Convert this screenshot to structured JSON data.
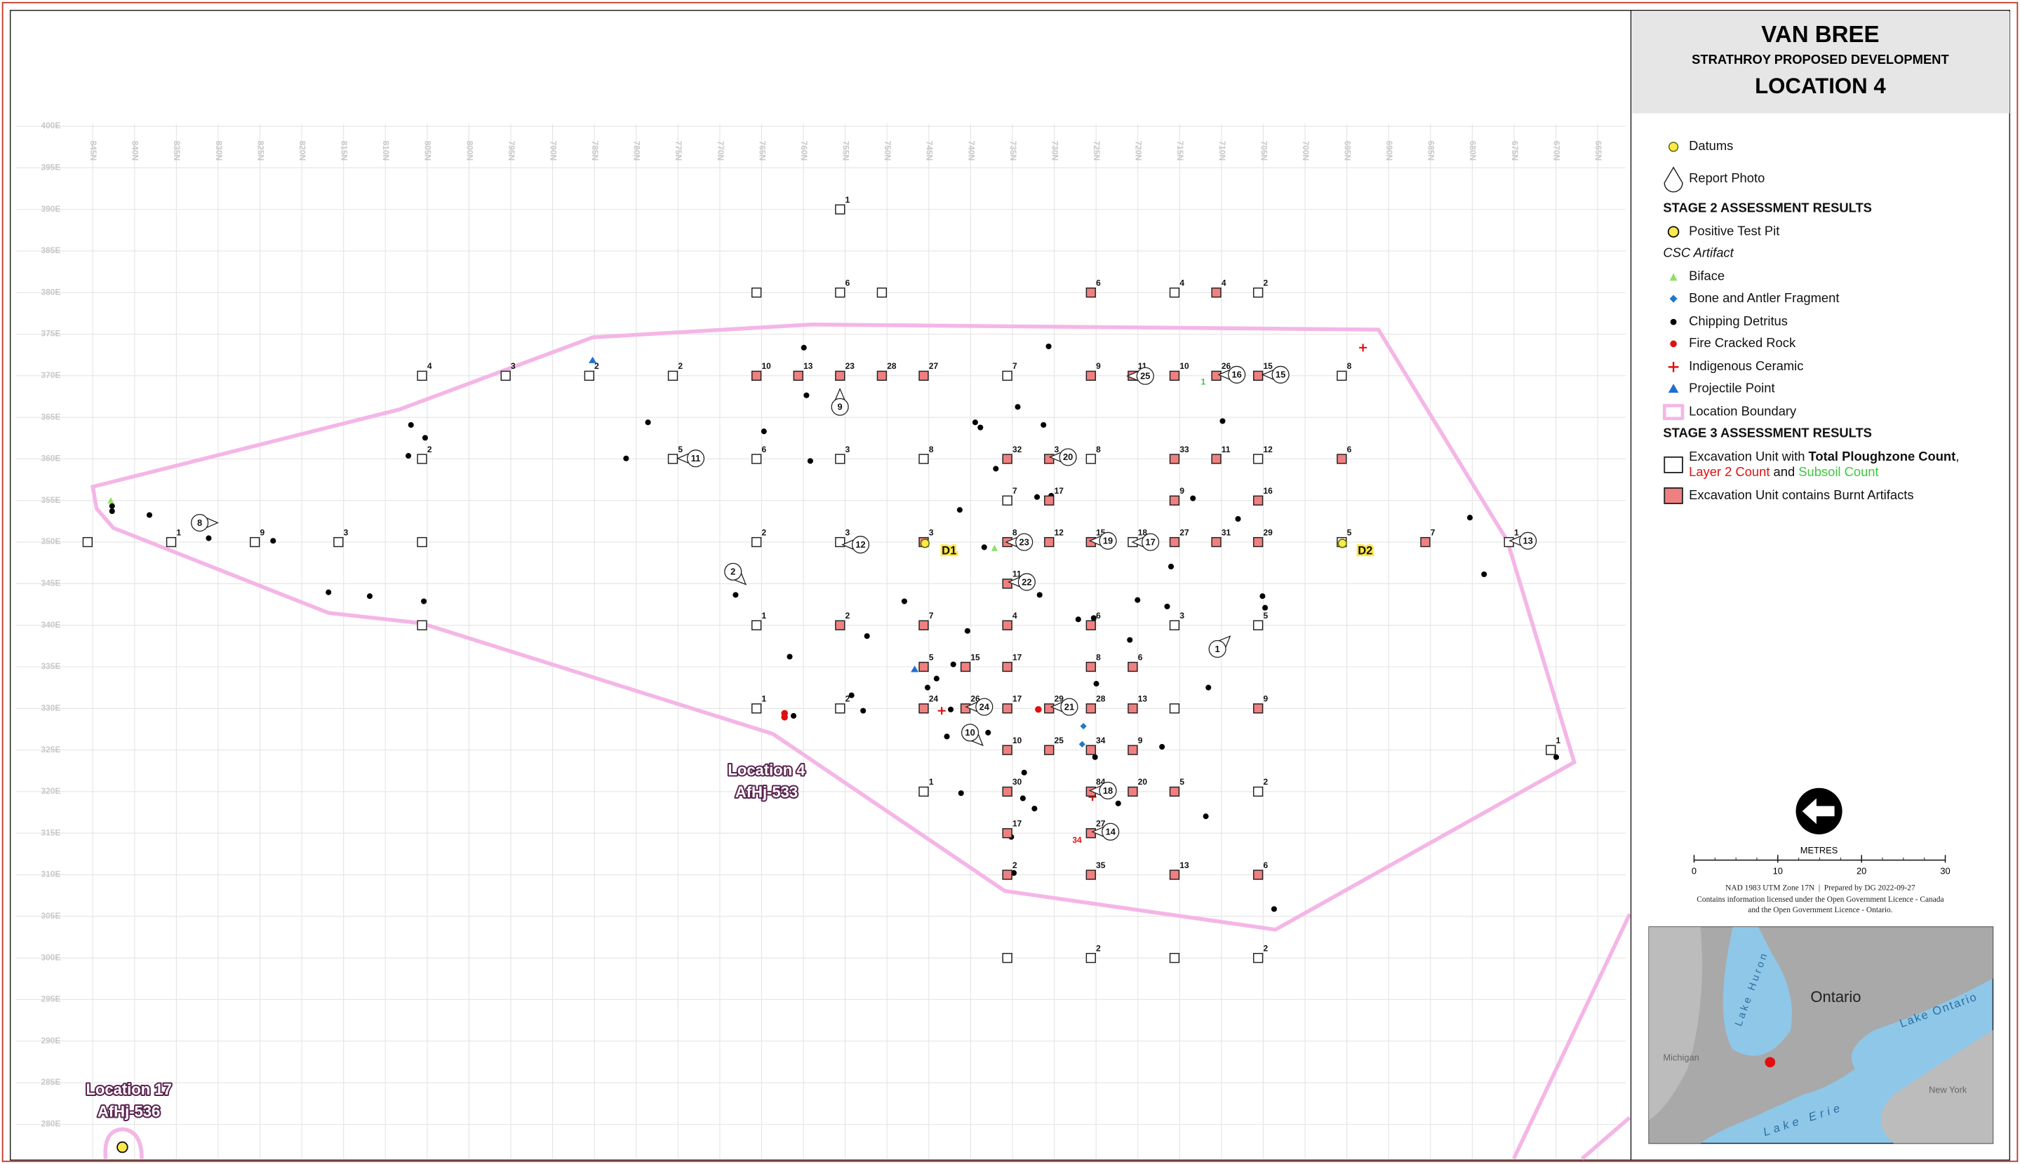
{
  "title": "VAN BREE",
  "subtitle": "STRATHROY PROPOSED DEVELOPMENT",
  "location_title": "LOCATION 4",
  "legend": {
    "datums": "Datums",
    "report_photo": "Report Photo",
    "stage2_heading": "STAGE 2 ASSESSMENT RESULTS",
    "positive_test_pit": "Positive Test Pit",
    "csc_artifact": "CSC Artifact",
    "biface": "Biface",
    "bone": "Bone and Antler Fragment",
    "chipping": "Chipping Detritus",
    "fcr": "Fire Cracked Rock",
    "ceramic": "Indigenous Ceramic",
    "projectile": "Projectile Point",
    "boundary": "Location Boundary",
    "stage3_heading": "STAGE 3 ASSESSMENT RESULTS",
    "unit_line1": [
      "Excavation Unit with ",
      "Total Ploughzone Count",
      ","
    ],
    "unit_line2": [
      "Layer 2 Count",
      " and ",
      "Subsoil Count"
    ],
    "burnt": "Excavation Unit contains Burnt Artifacts"
  },
  "grid": {
    "northings": [
      "845N",
      "840N",
      "835N",
      "830N",
      "825N",
      "820N",
      "815N",
      "810N",
      "805N",
      "800N",
      "795N",
      "790N",
      "785N",
      "780N",
      "775N",
      "770N",
      "765N",
      "760N",
      "755N",
      "750N",
      "745N",
      "740N",
      "735N",
      "730N",
      "725N",
      "720N",
      "715N",
      "710N",
      "705N",
      "700N",
      "695N",
      "690N",
      "685N",
      "680N",
      "675N",
      "670N",
      "665N"
    ],
    "eastings": [
      "400E",
      "395E",
      "390E",
      "385E",
      "380E",
      "375E",
      "370E",
      "365E",
      "360E",
      "355E",
      "350E",
      "345E",
      "340E",
      "335E",
      "330E",
      "325E",
      "320E",
      "315E",
      "310E",
      "305E",
      "300E",
      "295E",
      "290E",
      "285E",
      "280E"
    ]
  },
  "units": [
    {
      "count": null,
      "burnt": false
    },
    {
      "count": 1,
      "burnt": false
    },
    {
      "count": 9,
      "burnt": false
    },
    {
      "count": 3,
      "burnt": false
    },
    {
      "count": null,
      "burnt": false
    },
    {
      "count": 2,
      "burnt": false
    },
    {
      "count": 3,
      "burnt": false
    },
    {
      "count": 3,
      "burnt": true
    },
    {
      "count": 8,
      "burnt": true
    },
    {
      "count": 12,
      "burnt": true
    },
    {
      "count": 15,
      "burnt": true
    },
    {
      "count": 18,
      "burnt": false
    },
    {
      "count": 27,
      "burnt": true
    },
    {
      "count": 31,
      "burnt": true
    },
    {
      "count": 29,
      "burnt": true
    },
    {
      "count": 5,
      "burnt": false
    },
    {
      "count": 7,
      "burnt": true
    },
    {
      "count": 1,
      "burnt": false
    },
    {
      "count": 1,
      "burnt": false
    },
    {
      "count": null,
      "burnt": false
    },
    {
      "count": 6,
      "burnt": false
    },
    {
      "count": null,
      "burnt": false
    },
    {
      "count": 6,
      "burnt": true
    },
    {
      "count": 4,
      "burnt": false
    },
    {
      "count": 4,
      "burnt": true
    },
    {
      "count": 2,
      "burnt": false
    },
    {
      "count": 4,
      "burnt": false
    },
    {
      "count": 3,
      "burnt": false
    },
    {
      "count": 2,
      "burnt": false
    },
    {
      "count": 2,
      "burnt": false
    },
    {
      "count": 10,
      "burnt": true
    },
    {
      "count": 13,
      "burnt": true
    },
    {
      "count": 23,
      "burnt": true
    },
    {
      "count": 28,
      "burnt": true
    },
    {
      "count": 27,
      "burnt": true
    },
    {
      "count": 7,
      "burnt": false
    },
    {
      "count": 9,
      "burnt": true
    },
    {
      "count": 11,
      "burnt": true
    },
    {
      "count": 10,
      "burnt": true
    },
    {
      "count": 26,
      "burnt": true
    },
    {
      "count": 15,
      "burnt": true
    },
    {
      "count": 8,
      "burnt": false
    },
    {
      "count": 2,
      "burnt": false
    },
    {
      "count": 5,
      "burnt": false
    },
    {
      "count": 6,
      "burnt": false
    },
    {
      "count": 3,
      "burnt": false
    },
    {
      "count": 8,
      "burnt": false
    },
    {
      "count": 32,
      "burnt": true
    },
    {
      "count": 3,
      "burnt": true
    },
    {
      "count": 8,
      "burnt": false
    },
    {
      "count": 33,
      "burnt": true
    },
    {
      "count": 11,
      "burnt": true
    },
    {
      "count": 12,
      "burnt": false
    },
    {
      "count": 6,
      "burnt": true
    },
    {
      "count": 7,
      "burnt": false
    },
    {
      "count": 17,
      "burnt": true
    },
    {
      "count": 9,
      "burnt": true
    },
    {
      "count": 16,
      "burnt": true
    },
    {
      "count": 11,
      "burnt": true
    },
    {
      "count": null,
      "burnt": false
    },
    {
      "count": 1,
      "burnt": false
    },
    {
      "count": 2,
      "burnt": true
    },
    {
      "count": 7,
      "burnt": true
    },
    {
      "count": 4,
      "burnt": true
    },
    {
      "count": 6,
      "burnt": true
    },
    {
      "count": 3,
      "burnt": false
    },
    {
      "count": 5,
      "burnt": false
    },
    {
      "count": 5,
      "burnt": true
    },
    {
      "count": 15,
      "burnt": true
    },
    {
      "count": 17,
      "burnt": true
    },
    {
      "count": 8,
      "burnt": true
    },
    {
      "count": 6,
      "burnt": true
    },
    {
      "count": 1,
      "burnt": false
    },
    {
      "count": 2,
      "burnt": false
    },
    {
      "count": 24,
      "burnt": true
    },
    {
      "count": 26,
      "burnt": true
    },
    {
      "count": 17,
      "burnt": true
    },
    {
      "count": 29,
      "burnt": true
    },
    {
      "count": 28,
      "burnt": true
    },
    {
      "count": 13,
      "burnt": true
    },
    {
      "count": null,
      "burnt": false
    },
    {
      "count": 9,
      "burnt": true
    },
    {
      "count": 10,
      "burnt": true
    },
    {
      "count": 25,
      "burnt": true
    },
    {
      "count": 34,
      "burnt": true
    },
    {
      "count": 9,
      "burnt": true
    },
    {
      "count": 1,
      "burnt": false
    },
    {
      "count": 1,
      "burnt": false
    },
    {
      "count": 30,
      "burnt": true
    },
    {
      "count": 84,
      "burnt": true
    },
    {
      "count": 20,
      "burnt": true
    },
    {
      "count": 5,
      "burnt": true
    },
    {
      "count": 2,
      "burnt": false
    },
    {
      "count": 17,
      "burnt": true
    },
    {
      "count": 27,
      "burnt": true
    },
    {
      "count": 2,
      "burnt": true
    },
    {
      "count": 35,
      "burnt": true
    },
    {
      "count": 13,
      "burnt": true
    },
    {
      "count": 6,
      "burnt": true
    },
    {
      "count": null,
      "burnt": false
    },
    {
      "count": 2,
      "burnt": false
    },
    {
      "count": null,
      "burnt": false
    },
    {
      "count": 2,
      "burnt": false
    }
  ],
  "layer2_labels": [
    34
  ],
  "subsoil_labels": [
    1
  ],
  "photos": [
    8,
    9,
    11,
    2,
    12,
    23,
    19,
    17,
    13,
    22,
    20,
    25,
    16,
    15,
    1,
    24,
    21,
    10,
    18,
    14
  ],
  "datums": [
    "D1",
    "D2"
  ],
  "locations": [
    {
      "name": "Location 4",
      "code": "AfHj-533"
    },
    {
      "name": "Location 17",
      "code": "AfHj-536"
    }
  ],
  "scale": {
    "ticks": [
      0,
      10,
      20,
      30
    ],
    "unit": "METRES"
  },
  "notes": [
    "NAD 1983 UTM Zone 17N  |  Prepared by DG 2022-09-27",
    "Contains information licensed under the Open Government Licence - Canada",
    "and the Open Government Licence - Ontario."
  ],
  "inset": {
    "province": "Ontario",
    "lake_huron": "Lake Huron",
    "lake_ontario": "Lake Ontario",
    "lake_erie": "Lake Erie",
    "michigan": "Michigan",
    "new_york": "New York"
  }
}
